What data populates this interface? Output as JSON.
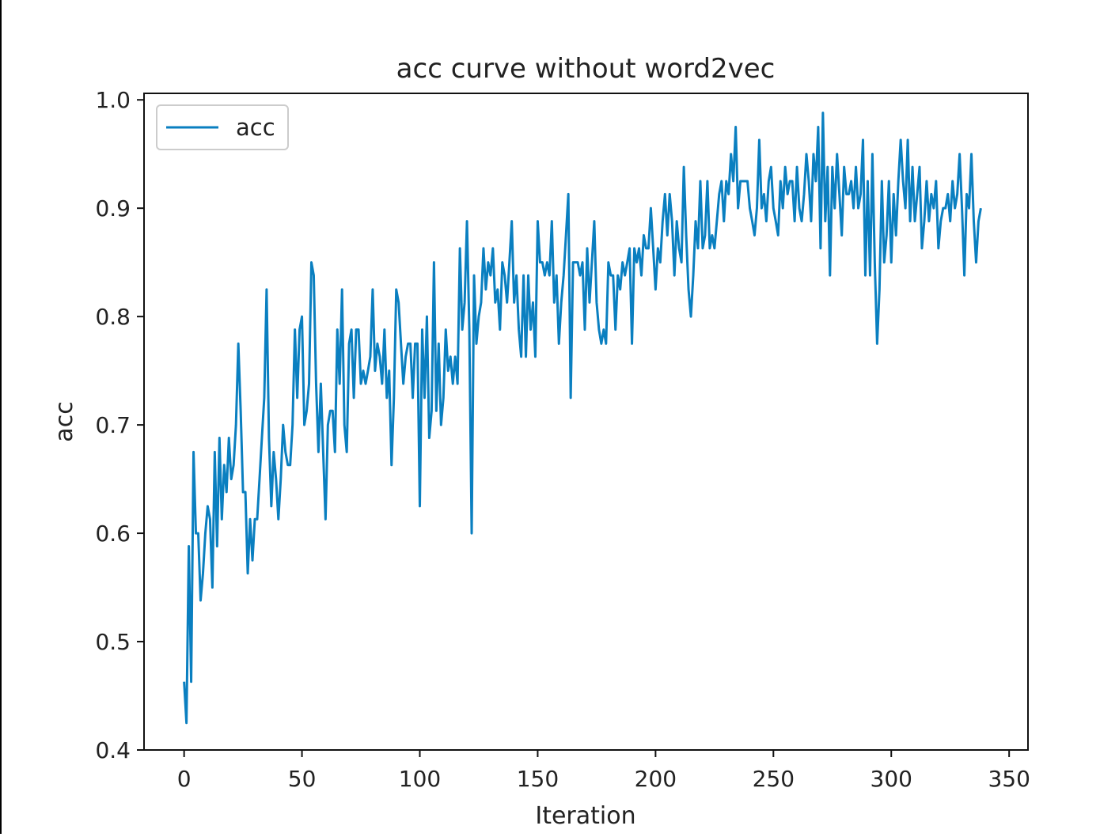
{
  "chart_data": {
    "type": "line",
    "title": "acc curve without word2vec",
    "xlabel": "Iteration",
    "ylabel": "acc",
    "xlim": [
      -17,
      358
    ],
    "ylim": [
      0.4,
      1.006
    ],
    "xticks": [
      0,
      50,
      100,
      150,
      200,
      250,
      300,
      350
    ],
    "yticks": [
      0.4,
      0.5,
      0.6,
      0.7,
      0.8,
      0.9,
      1.0
    ],
    "xtick_labels": [
      "0",
      "50",
      "100",
      "150",
      "200",
      "250",
      "300",
      "350"
    ],
    "ytick_labels": [
      "0.4",
      "0.5",
      "0.6",
      "0.7",
      "0.8",
      "0.9",
      "1.0"
    ],
    "grid": false,
    "legend": "upper-left",
    "series": [
      {
        "name": "acc",
        "color": "#0a7fc0",
        "x_start": 0,
        "x_step": 1,
        "values": [
          0.463,
          0.425,
          0.588,
          0.463,
          0.675,
          0.6,
          0.6,
          0.538,
          0.563,
          0.6,
          0.625,
          0.613,
          0.55,
          0.675,
          0.588,
          0.688,
          0.613,
          0.663,
          0.638,
          0.688,
          0.65,
          0.663,
          0.7,
          0.775,
          0.713,
          0.638,
          0.638,
          0.563,
          0.613,
          0.575,
          0.613,
          0.613,
          0.65,
          0.688,
          0.725,
          0.825,
          0.688,
          0.625,
          0.675,
          0.65,
          0.613,
          0.65,
          0.7,
          0.675,
          0.663,
          0.663,
          0.7,
          0.788,
          0.725,
          0.788,
          0.8,
          0.7,
          0.713,
          0.738,
          0.85,
          0.838,
          0.738,
          0.675,
          0.738,
          0.675,
          0.613,
          0.7,
          0.713,
          0.713,
          0.675,
          0.788,
          0.738,
          0.825,
          0.7,
          0.675,
          0.775,
          0.788,
          0.725,
          0.788,
          0.788,
          0.738,
          0.75,
          0.738,
          0.75,
          0.763,
          0.825,
          0.75,
          0.775,
          0.763,
          0.738,
          0.788,
          0.725,
          0.75,
          0.663,
          0.725,
          0.825,
          0.813,
          0.775,
          0.738,
          0.763,
          0.775,
          0.775,
          0.725,
          0.775,
          0.775,
          0.625,
          0.788,
          0.725,
          0.8,
          0.688,
          0.713,
          0.85,
          0.713,
          0.775,
          0.7,
          0.725,
          0.788,
          0.75,
          0.763,
          0.738,
          0.763,
          0.738,
          0.863,
          0.788,
          0.813,
          0.888,
          0.788,
          0.6,
          0.838,
          0.775,
          0.8,
          0.813,
          0.863,
          0.825,
          0.85,
          0.838,
          0.863,
          0.813,
          0.825,
          0.788,
          0.85,
          0.838,
          0.813,
          0.85,
          0.888,
          0.813,
          0.838,
          0.788,
          0.763,
          0.838,
          0.763,
          0.838,
          0.788,
          0.813,
          0.763,
          0.888,
          0.85,
          0.85,
          0.838,
          0.85,
          0.838,
          0.888,
          0.813,
          0.838,
          0.775,
          0.813,
          0.838,
          0.875,
          0.913,
          0.725,
          0.85,
          0.85,
          0.85,
          0.838,
          0.85,
          0.788,
          0.863,
          0.813,
          0.85,
          0.888,
          0.813,
          0.788,
          0.775,
          0.788,
          0.775,
          0.85,
          0.838,
          0.838,
          0.788,
          0.838,
          0.825,
          0.85,
          0.838,
          0.85,
          0.863,
          0.775,
          0.863,
          0.85,
          0.863,
          0.838,
          0.875,
          0.863,
          0.863,
          0.9,
          0.863,
          0.825,
          0.863,
          0.85,
          0.888,
          0.913,
          0.875,
          0.913,
          0.888,
          0.838,
          0.888,
          0.863,
          0.85,
          0.938,
          0.875,
          0.825,
          0.8,
          0.838,
          0.888,
          0.863,
          0.925,
          0.863,
          0.875,
          0.925,
          0.863,
          0.875,
          0.863,
          0.888,
          0.913,
          0.925,
          0.888,
          0.925,
          0.913,
          0.95,
          0.925,
          0.975,
          0.9,
          0.925,
          0.925,
          0.925,
          0.925,
          0.9,
          0.888,
          0.875,
          0.9,
          0.963,
          0.9,
          0.913,
          0.888,
          0.925,
          0.938,
          0.9,
          0.888,
          0.875,
          0.925,
          0.9,
          0.938,
          0.913,
          0.925,
          0.925,
          0.888,
          0.938,
          0.9,
          0.888,
          0.913,
          0.95,
          0.925,
          0.888,
          0.95,
          0.925,
          0.975,
          0.863,
          0.988,
          0.888,
          0.938,
          0.838,
          0.938,
          0.9,
          0.95,
          0.913,
          0.875,
          0.938,
          0.913,
          0.913,
          0.925,
          0.9,
          0.938,
          0.9,
          0.913,
          0.963,
          0.838,
          0.925,
          0.838,
          0.95,
          0.85,
          0.775,
          0.825,
          0.925,
          0.85,
          0.875,
          0.925,
          0.85,
          0.913,
          0.875,
          0.925,
          0.963,
          0.925,
          0.9,
          0.963,
          0.888,
          0.938,
          0.888,
          0.913,
          0.938,
          0.863,
          0.888,
          0.925,
          0.888,
          0.913,
          0.9,
          0.925,
          0.863,
          0.888,
          0.9,
          0.9,
          0.913,
          0.888,
          0.925,
          0.9,
          0.913,
          0.95,
          0.9,
          0.838,
          0.913,
          0.9,
          0.95,
          0.888,
          0.85,
          0.888,
          0.9
        ]
      }
    ]
  }
}
